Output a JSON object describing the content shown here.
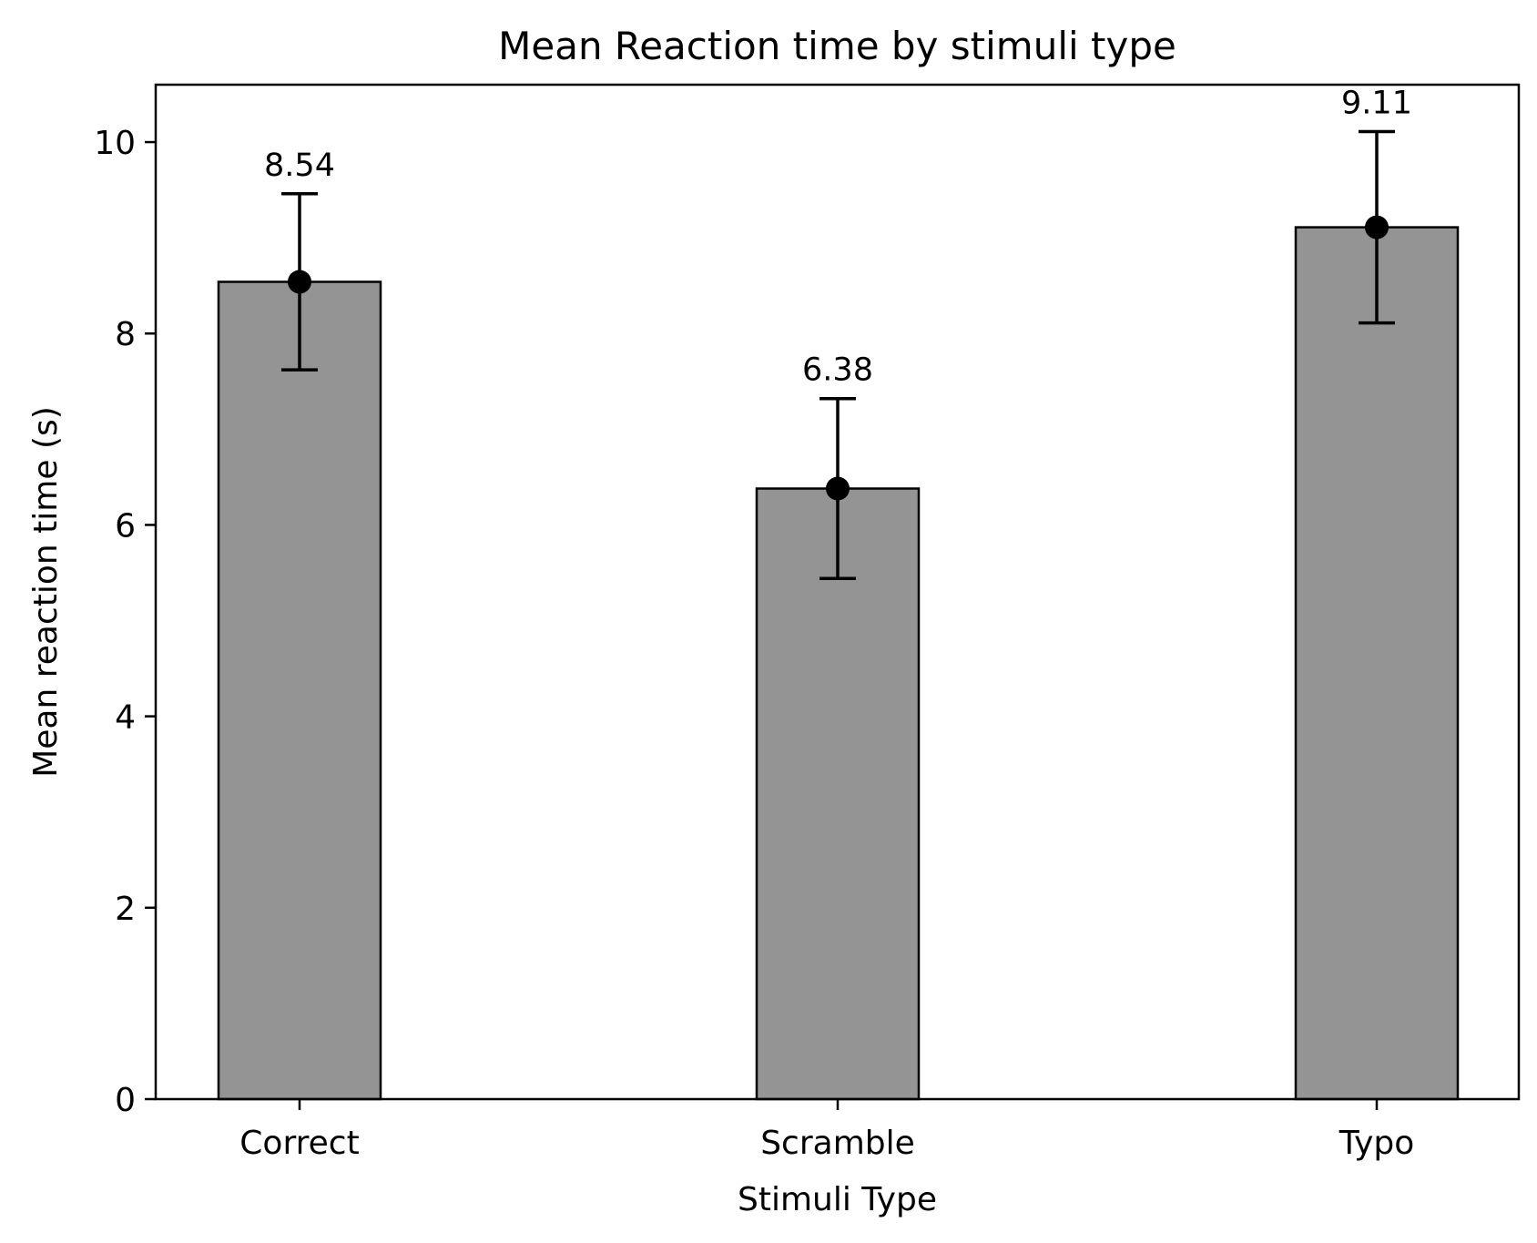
{
  "chart_data": {
    "type": "bar",
    "title": "Mean Reaction time by stimuli type",
    "xlabel": "Stimuli Type",
    "ylabel": "Mean reaction time (s)",
    "categories": [
      "Correct",
      "Scramble",
      "Typo"
    ],
    "values": [
      8.54,
      6.38,
      9.11
    ],
    "data_labels": [
      "8.54",
      "6.38",
      "9.11"
    ],
    "error_bars": [
      {
        "low": 7.62,
        "high": 9.46
      },
      {
        "low": 5.44,
        "high": 7.32
      },
      {
        "low": 8.11,
        "high": 10.11
      }
    ],
    "ylim": [
      0,
      10.6
    ],
    "yticks": [
      0,
      2,
      4,
      6,
      8,
      10
    ],
    "ytick_labels": [
      "0",
      "2",
      "4",
      "6",
      "8",
      "10"
    ],
    "grid": false,
    "legend": "none",
    "colors": {
      "bar_fill": "#949494",
      "bar_edge": "#000000",
      "marker": "#000000",
      "error_bar": "#000000"
    }
  }
}
